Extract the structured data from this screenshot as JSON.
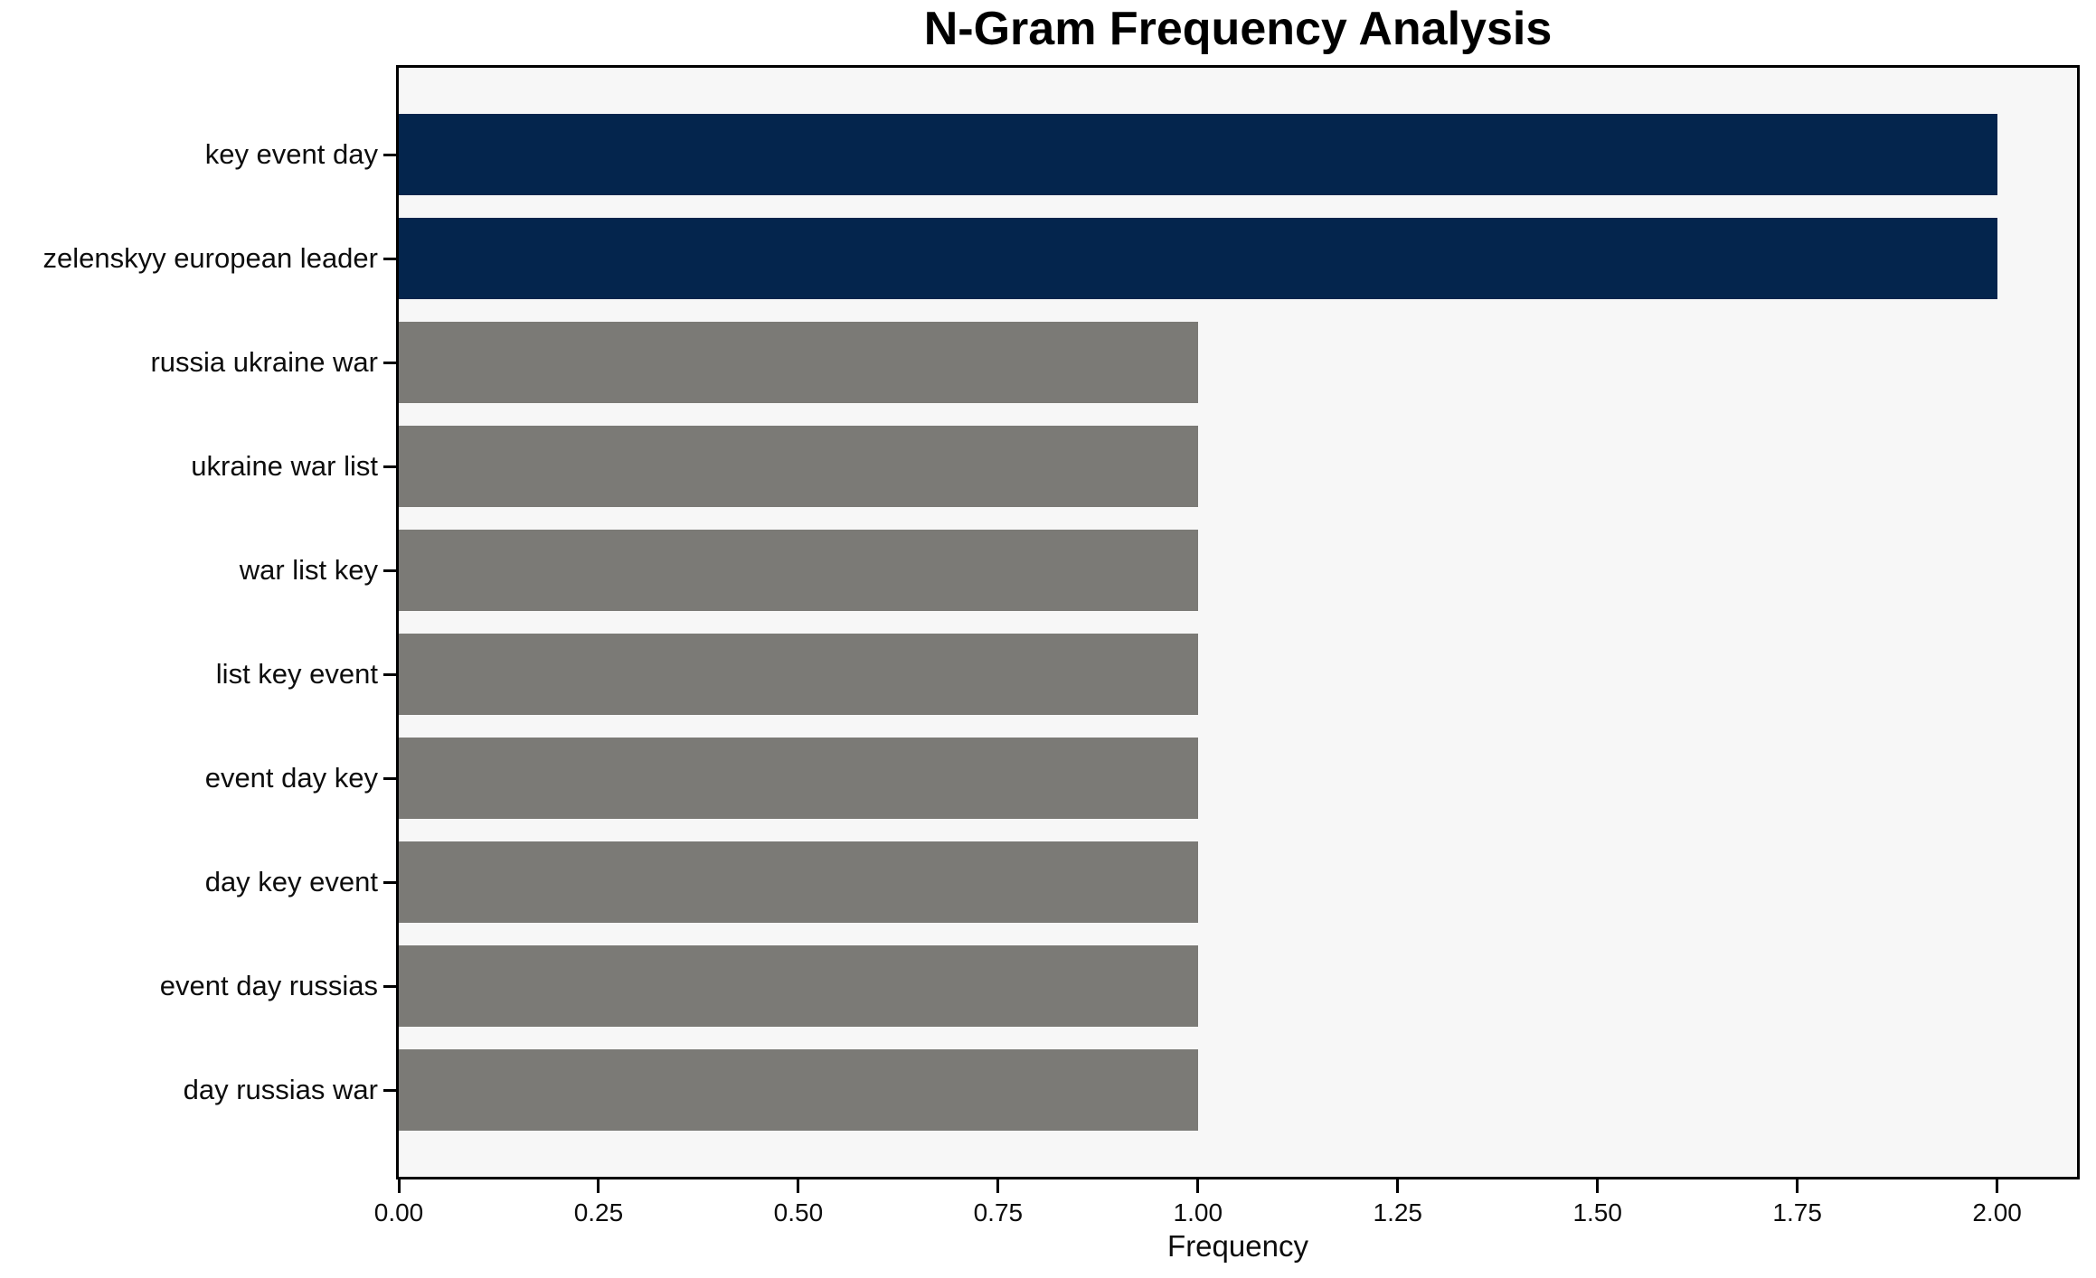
{
  "chart_data": {
    "type": "bar",
    "orientation": "horizontal",
    "title": "N-Gram Frequency Analysis",
    "xlabel": "Frequency",
    "ylabel": "",
    "categories": [
      "key event day",
      "zelenskyy european leader",
      "russia ukraine war",
      "ukraine war list",
      "war list key",
      "list key event",
      "event day key",
      "day key event",
      "event day russias",
      "day russias war"
    ],
    "values": [
      2,
      2,
      1,
      1,
      1,
      1,
      1,
      1,
      1,
      1
    ],
    "bar_colors": [
      "#04254d",
      "#04254d",
      "#7b7a76",
      "#7b7a76",
      "#7b7a76",
      "#7b7a76",
      "#7b7a76",
      "#7b7a76",
      "#7b7a76",
      "#7b7a76"
    ],
    "xlim": [
      0,
      2.1
    ],
    "xticks": [
      0,
      0.25,
      0.5,
      0.75,
      1.0,
      1.25,
      1.5,
      1.75,
      2.0
    ],
    "xtick_labels": [
      "0.00",
      "0.25",
      "0.50",
      "0.75",
      "1.00",
      "1.25",
      "1.50",
      "1.75",
      "2.00"
    ],
    "grid": false,
    "legend": null,
    "highlight_color": "#04254d",
    "default_color": "#7b7a76",
    "plot_background": "#f7f7f7",
    "figure_background": "#ffffff"
  }
}
